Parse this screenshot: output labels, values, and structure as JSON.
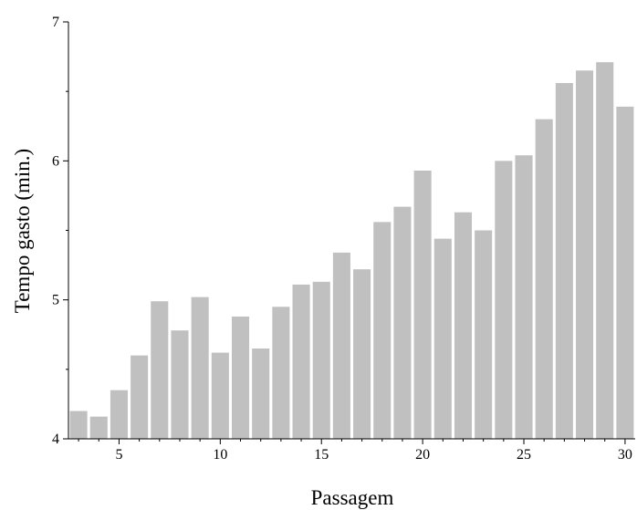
{
  "chart_data": {
    "type": "bar",
    "title": "",
    "xlabel": "Passagem",
    "ylabel": "Tempo gasto (min.)",
    "xlim": [
      2.5,
      30.5
    ],
    "ylim": [
      4,
      7
    ],
    "x_ticks": [
      5,
      10,
      15,
      20,
      25,
      30
    ],
    "y_ticks": [
      4,
      5,
      6,
      7
    ],
    "bar_color": "#c0c0c0",
    "grid": false,
    "legend": "none",
    "x": [
      3,
      4,
      5,
      6,
      7,
      8,
      9,
      10,
      11,
      12,
      13,
      14,
      15,
      16,
      17,
      18,
      19,
      20,
      21,
      22,
      23,
      24,
      25,
      26,
      27,
      28,
      29,
      30
    ],
    "values": [
      4.2,
      4.16,
      4.35,
      4.6,
      4.99,
      4.78,
      5.02,
      4.62,
      4.88,
      4.65,
      4.95,
      5.11,
      5.13,
      5.34,
      5.22,
      5.56,
      5.67,
      5.93,
      5.44,
      5.63,
      5.5,
      6.0,
      6.04,
      6.3,
      6.56,
      6.65,
      6.71,
      6.39
    ]
  }
}
